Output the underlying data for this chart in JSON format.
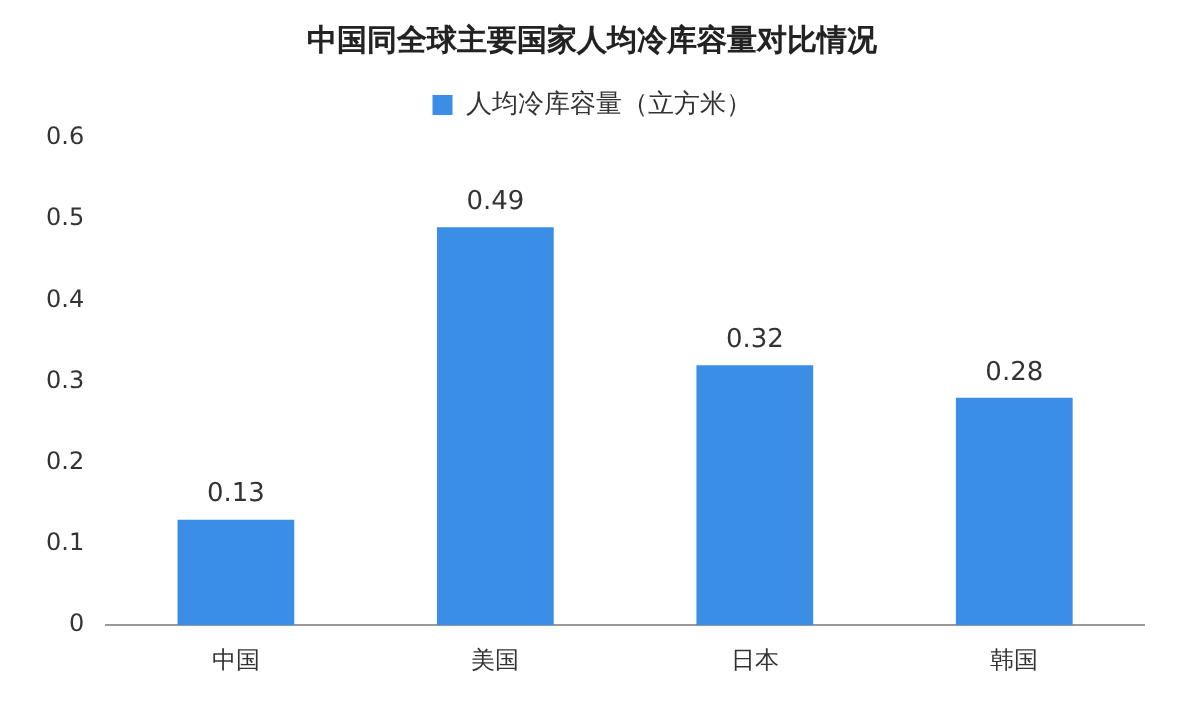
{
  "chart_data": {
    "type": "bar",
    "title": "中国同全球主要国家人均冷库容量对比情况",
    "categories": [
      "中国",
      "美国",
      "日本",
      "韩国"
    ],
    "series": [
      {
        "name": "人均冷库容量（立方米）",
        "color": "#3a8ee6",
        "values": [
          0.13,
          0.49,
          0.32,
          0.28
        ]
      }
    ],
    "ylim": [
      0,
      0.6
    ],
    "yticks": [
      0,
      0.1,
      0.2,
      0.3,
      0.4,
      0.5,
      0.6
    ],
    "grid": false,
    "legend": "top",
    "data_labels": true
  }
}
